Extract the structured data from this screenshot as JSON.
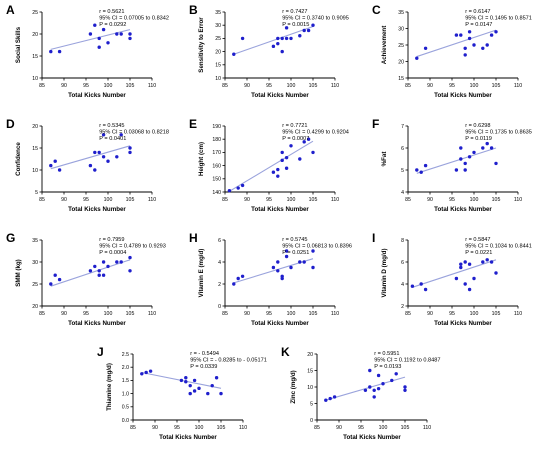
{
  "colors": {
    "point": "#1f1fcc",
    "line": "#9aa3dc",
    "axis": "#000000"
  },
  "chart_data": [
    {
      "type": "scatter",
      "panel": "A",
      "xlabel": "Total Kicks Number",
      "ylabel": "Social Skills",
      "xlim": [
        85,
        110
      ],
      "ylim": [
        10,
        25
      ],
      "xticks": [
        85,
        90,
        95,
        100,
        105,
        110
      ],
      "yticks": [
        10,
        15,
        20,
        25
      ],
      "stats": [
        "r = 0.5621",
        "95% CI = 0.07005 to 0.8342",
        "P = 0.0292"
      ],
      "trend": [
        [
          87,
          16.5
        ],
        [
          105,
          21.0
        ]
      ],
      "points": [
        [
          87,
          16
        ],
        [
          89,
          16
        ],
        [
          96,
          20
        ],
        [
          97,
          22
        ],
        [
          98,
          17
        ],
        [
          98,
          19
        ],
        [
          99,
          21
        ],
        [
          100,
          18
        ],
        [
          102,
          20
        ],
        [
          103,
          20
        ],
        [
          105,
          19
        ],
        [
          105,
          20
        ]
      ]
    },
    {
      "type": "scatter",
      "panel": "B",
      "xlabel": "Total Kicks Number",
      "ylabel": "Sensitivity to Error",
      "xlim": [
        85,
        110
      ],
      "ylim": [
        10,
        35
      ],
      "xticks": [
        85,
        90,
        95,
        100,
        105,
        110
      ],
      "yticks": [
        10,
        15,
        20,
        25,
        30,
        35
      ],
      "stats": [
        "r = 0.7427",
        "95% CI = 0.3740 to 0.9095",
        "P = 0.0015"
      ],
      "trend": [
        [
          87,
          19.0
        ],
        [
          105,
          29.5
        ]
      ],
      "points": [
        [
          87,
          19
        ],
        [
          89,
          25
        ],
        [
          96,
          22
        ],
        [
          97,
          23
        ],
        [
          97,
          25
        ],
        [
          98,
          25
        ],
        [
          98,
          20
        ],
        [
          99,
          25
        ],
        [
          99,
          29
        ],
        [
          100,
          25
        ],
        [
          102,
          26
        ],
        [
          103,
          28
        ],
        [
          104,
          28
        ],
        [
          105,
          30
        ]
      ]
    },
    {
      "type": "scatter",
      "panel": "C",
      "xlabel": "Total Kicks Number",
      "ylabel": "Achievement",
      "xlim": [
        85,
        110
      ],
      "ylim": [
        15,
        35
      ],
      "xticks": [
        85,
        90,
        95,
        100,
        105,
        110
      ],
      "yticks": [
        15,
        20,
        25,
        30,
        35
      ],
      "stats": [
        "r = 0.6147",
        "95% CI = 0.1495 to 0.8571",
        "P = 0.0147"
      ],
      "trend": [
        [
          87,
          21.5
        ],
        [
          105,
          29.5
        ]
      ],
      "points": [
        [
          87,
          21
        ],
        [
          89,
          24
        ],
        [
          96,
          28
        ],
        [
          97,
          28
        ],
        [
          98,
          24
        ],
        [
          98,
          22
        ],
        [
          99,
          27
        ],
        [
          99,
          29
        ],
        [
          100,
          25
        ],
        [
          102,
          24
        ],
        [
          103,
          25
        ],
        [
          104,
          28
        ],
        [
          105,
          29
        ]
      ]
    },
    {
      "type": "scatter",
      "panel": "D",
      "xlabel": "Total Kicks Number",
      "ylabel": "Confidence",
      "xlim": [
        85,
        110
      ],
      "ylim": [
        5,
        20
      ],
      "xticks": [
        85,
        90,
        95,
        100,
        105,
        110
      ],
      "yticks": [
        5,
        10,
        15,
        20
      ],
      "stats": [
        "r = 0.5345",
        "95% CI = 0.03068 to 0.8218",
        "P = 0.0401"
      ],
      "trend": [
        [
          87,
          10.3
        ],
        [
          105,
          15.5
        ]
      ],
      "points": [
        [
          87,
          11
        ],
        [
          88,
          12
        ],
        [
          89,
          10
        ],
        [
          96,
          11
        ],
        [
          97,
          14
        ],
        [
          97,
          10
        ],
        [
          98,
          14
        ],
        [
          99,
          18
        ],
        [
          99,
          13
        ],
        [
          100,
          12
        ],
        [
          102,
          13
        ],
        [
          103,
          18
        ],
        [
          105,
          14
        ],
        [
          105,
          15
        ]
      ]
    },
    {
      "type": "scatter",
      "panel": "E",
      "xlabel": "Total Kicks Number",
      "ylabel": "Height (cm)",
      "xlim": [
        85,
        110
      ],
      "ylim": [
        140,
        190
      ],
      "xticks": [
        85,
        90,
        95,
        100,
        105,
        110
      ],
      "yticks": [
        140,
        150,
        160,
        170,
        180,
        190
      ],
      "stats": [
        "r = 0.7721",
        "95% CI = 0.4299 to 0.9204",
        "P = 0.0007"
      ],
      "trend": [
        [
          86,
          140.5
        ],
        [
          105,
          178.5
        ]
      ],
      "points": [
        [
          86,
          141
        ],
        [
          88,
          143
        ],
        [
          89,
          145
        ],
        [
          96,
          155
        ],
        [
          97,
          152
        ],
        [
          97,
          157
        ],
        [
          98,
          164
        ],
        [
          98,
          170
        ],
        [
          99,
          158
        ],
        [
          99,
          166
        ],
        [
          100,
          175
        ],
        [
          102,
          165
        ],
        [
          103,
          178
        ],
        [
          104,
          180
        ],
        [
          105,
          170
        ]
      ]
    },
    {
      "type": "scatter",
      "panel": "F",
      "xlabel": "Total Kicks Number",
      "ylabel": "%Fat",
      "xlim": [
        85,
        110
      ],
      "ylim": [
        4,
        7
      ],
      "xticks": [
        85,
        90,
        95,
        100,
        105,
        110
      ],
      "yticks": [
        4,
        5,
        6,
        7
      ],
      "stats": [
        "r = 0.6298",
        "95% CI = 0.1735 to 0.8635",
        "P = 0.0119"
      ],
      "trend": [
        [
          87,
          4.85
        ],
        [
          105,
          6.0
        ]
      ],
      "points": [
        [
          87,
          5.0
        ],
        [
          88,
          4.9
        ],
        [
          89,
          5.2
        ],
        [
          96,
          5.0
        ],
        [
          97,
          6.0
        ],
        [
          97,
          5.5
        ],
        [
          98,
          5.3
        ],
        [
          98,
          5.0
        ],
        [
          99,
          5.6
        ],
        [
          100,
          5.8
        ],
        [
          102,
          6.0
        ],
        [
          103,
          6.2
        ],
        [
          104,
          6.0
        ],
        [
          105,
          5.3
        ]
      ]
    },
    {
      "type": "scatter",
      "panel": "G",
      "xlabel": "Total Kicks Number",
      "ylabel": "SMM (kg)",
      "xlim": [
        85,
        110
      ],
      "ylim": [
        20,
        35
      ],
      "xticks": [
        85,
        90,
        95,
        100,
        105,
        110
      ],
      "yticks": [
        20,
        25,
        30,
        35
      ],
      "stats": [
        "r = 0.7959",
        "95% CI = 0.4789 to 0.9293",
        "P = 0.0004"
      ],
      "trend": [
        [
          87,
          24.5
        ],
        [
          105,
          30.5
        ]
      ],
      "points": [
        [
          87,
          25
        ],
        [
          88,
          27
        ],
        [
          89,
          26
        ],
        [
          96,
          28
        ],
        [
          97,
          29
        ],
        [
          98,
          27
        ],
        [
          98,
          28
        ],
        [
          99,
          27
        ],
        [
          99,
          30
        ],
        [
          100,
          29
        ],
        [
          102,
          30
        ],
        [
          103,
          30
        ],
        [
          105,
          28
        ],
        [
          105,
          31
        ]
      ]
    },
    {
      "type": "scatter",
      "panel": "H",
      "xlabel": "Total Kicks Number",
      "ylabel": "Vitamin E (mg/d)",
      "xlim": [
        85,
        110
      ],
      "ylim": [
        0,
        6
      ],
      "xticks": [
        85,
        90,
        95,
        100,
        105,
        110
      ],
      "yticks": [
        0,
        2,
        4,
        6
      ],
      "stats": [
        "r = 0.5745",
        "95% CI = 0.06813 to 0.8396",
        "P = 0.0251"
      ],
      "trend": [
        [
          87,
          2.1
        ],
        [
          105,
          4.3
        ]
      ],
      "points": [
        [
          87,
          2.0
        ],
        [
          88,
          2.5
        ],
        [
          89,
          2.7
        ],
        [
          96,
          3.5
        ],
        [
          97,
          4.0
        ],
        [
          97,
          3.2
        ],
        [
          98,
          2.7
        ],
        [
          98,
          2.5
        ],
        [
          99,
          4.5
        ],
        [
          99,
          5.0
        ],
        [
          100,
          3.5
        ],
        [
          102,
          4.0
        ],
        [
          103,
          4.0
        ],
        [
          105,
          3.5
        ],
        [
          105,
          5.0
        ]
      ]
    },
    {
      "type": "scatter",
      "panel": "I",
      "xlabel": "Total Kicks Number",
      "ylabel": "Vitamin D (mg/d)",
      "xlim": [
        85,
        110
      ],
      "ylim": [
        2,
        8
      ],
      "xticks": [
        85,
        90,
        95,
        100,
        105,
        110
      ],
      "yticks": [
        2,
        4,
        6,
        8
      ],
      "stats": [
        "r = 0.5847",
        "95% CI = 0.1034 to 0.8441",
        "P = 0.0221"
      ],
      "trend": [
        [
          86,
          3.7
        ],
        [
          105,
          6.2
        ]
      ],
      "points": [
        [
          86,
          3.8
        ],
        [
          88,
          4.0
        ],
        [
          89,
          3.5
        ],
        [
          96,
          4.5
        ],
        [
          97,
          5.8
        ],
        [
          97,
          5.5
        ],
        [
          98,
          6.0
        ],
        [
          98,
          4.0
        ],
        [
          99,
          3.5
        ],
        [
          99,
          5.8
        ],
        [
          100,
          4.5
        ],
        [
          102,
          6.0
        ],
        [
          103,
          6.2
        ],
        [
          105,
          5.0
        ],
        [
          104,
          6.0
        ]
      ]
    },
    {
      "type": "scatter",
      "panel": "J",
      "xlabel": "Total Kicks Number",
      "ylabel": "Thiamine (mg/d)",
      "xlim": [
        85,
        110
      ],
      "ylim": [
        0.0,
        2.5
      ],
      "xticks": [
        85,
        90,
        95,
        100,
        105,
        110
      ],
      "yticks": [
        0.0,
        0.5,
        1.0,
        1.5,
        2.0,
        2.5
      ],
      "stats": [
        "r = - 0.5494",
        "95% CI = - 0.8285 to - 0.05171",
        "P = 0.0339"
      ],
      "trend": [
        [
          87,
          1.8
        ],
        [
          105,
          1.2
        ]
      ],
      "points": [
        [
          87,
          1.75
        ],
        [
          88,
          1.8
        ],
        [
          89,
          1.85
        ],
        [
          96,
          1.5
        ],
        [
          97,
          1.6
        ],
        [
          97,
          1.45
        ],
        [
          98,
          1.3
        ],
        [
          98,
          1.0
        ],
        [
          99,
          1.1
        ],
        [
          99,
          1.5
        ],
        [
          100,
          1.2
        ],
        [
          102,
          1.0
        ],
        [
          103,
          1.3
        ],
        [
          104,
          1.6
        ],
        [
          105,
          1.0
        ]
      ]
    },
    {
      "type": "scatter",
      "panel": "K",
      "xlabel": "Total Kicks Number",
      "ylabel": "Zinc (mg/d)",
      "xlim": [
        85,
        110
      ],
      "ylim": [
        0,
        20
      ],
      "xticks": [
        85,
        90,
        95,
        100,
        105,
        110
      ],
      "yticks": [
        0,
        5,
        10,
        15,
        20
      ],
      "stats": [
        "r = 0.5951",
        "95% CI = 0.1192 to 0.8487",
        "P = 0.0193"
      ],
      "trend": [
        [
          87,
          6.0
        ],
        [
          105,
          13.0
        ]
      ],
      "points": [
        [
          87,
          6.0
        ],
        [
          88,
          6.5
        ],
        [
          89,
          7.0
        ],
        [
          96,
          9.0
        ],
        [
          97,
          15.0
        ],
        [
          97,
          10.0
        ],
        [
          98,
          9.0
        ],
        [
          98,
          7.0
        ],
        [
          99,
          13.5
        ],
        [
          99,
          9.5
        ],
        [
          100,
          11.0
        ],
        [
          102,
          12.0
        ],
        [
          103,
          14.0
        ],
        [
          105,
          10.0
        ],
        [
          105,
          9.0
        ]
      ]
    }
  ]
}
